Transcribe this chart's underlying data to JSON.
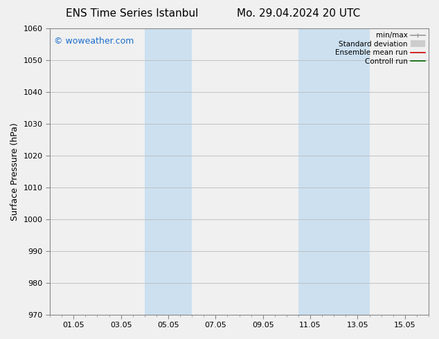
{
  "title_left": "ENS Time Series Istanbul",
  "title_right": "Mo. 29.04.2024 20 UTC",
  "ylabel": "Surface Pressure (hPa)",
  "ylim": [
    970,
    1060
  ],
  "yticks": [
    970,
    980,
    990,
    1000,
    1010,
    1020,
    1030,
    1040,
    1050,
    1060
  ],
  "xlim": [
    0,
    16
  ],
  "xtick_labels": [
    "01.05",
    "03.05",
    "05.05",
    "07.05",
    "09.05",
    "11.05",
    "13.05",
    "15.05"
  ],
  "xtick_positions": [
    1,
    3,
    5,
    7,
    9,
    11,
    13,
    15
  ],
  "watermark": "© woweather.com",
  "watermark_color": "#1a6ecc",
  "bg_color": "#f0f0f0",
  "plot_bg_color": "#f0f0f0",
  "shaded_regions": [
    {
      "xmin": 4.0,
      "xmax": 6.0,
      "color": "#cce0f0"
    },
    {
      "xmin": 10.5,
      "xmax": 13.5,
      "color": "#cce0f0"
    }
  ],
  "title_fontsize": 11,
  "axis_label_fontsize": 9,
  "tick_fontsize": 8,
  "legend_fontsize": 7.5,
  "watermark_fontsize": 9,
  "spine_color": "#888888",
  "grid_color": "#bbbbbb",
  "legend_line_colors": {
    "minmax": "#999999",
    "std": "#cccccc",
    "ensemble": "#cc0000",
    "control": "#006600"
  }
}
